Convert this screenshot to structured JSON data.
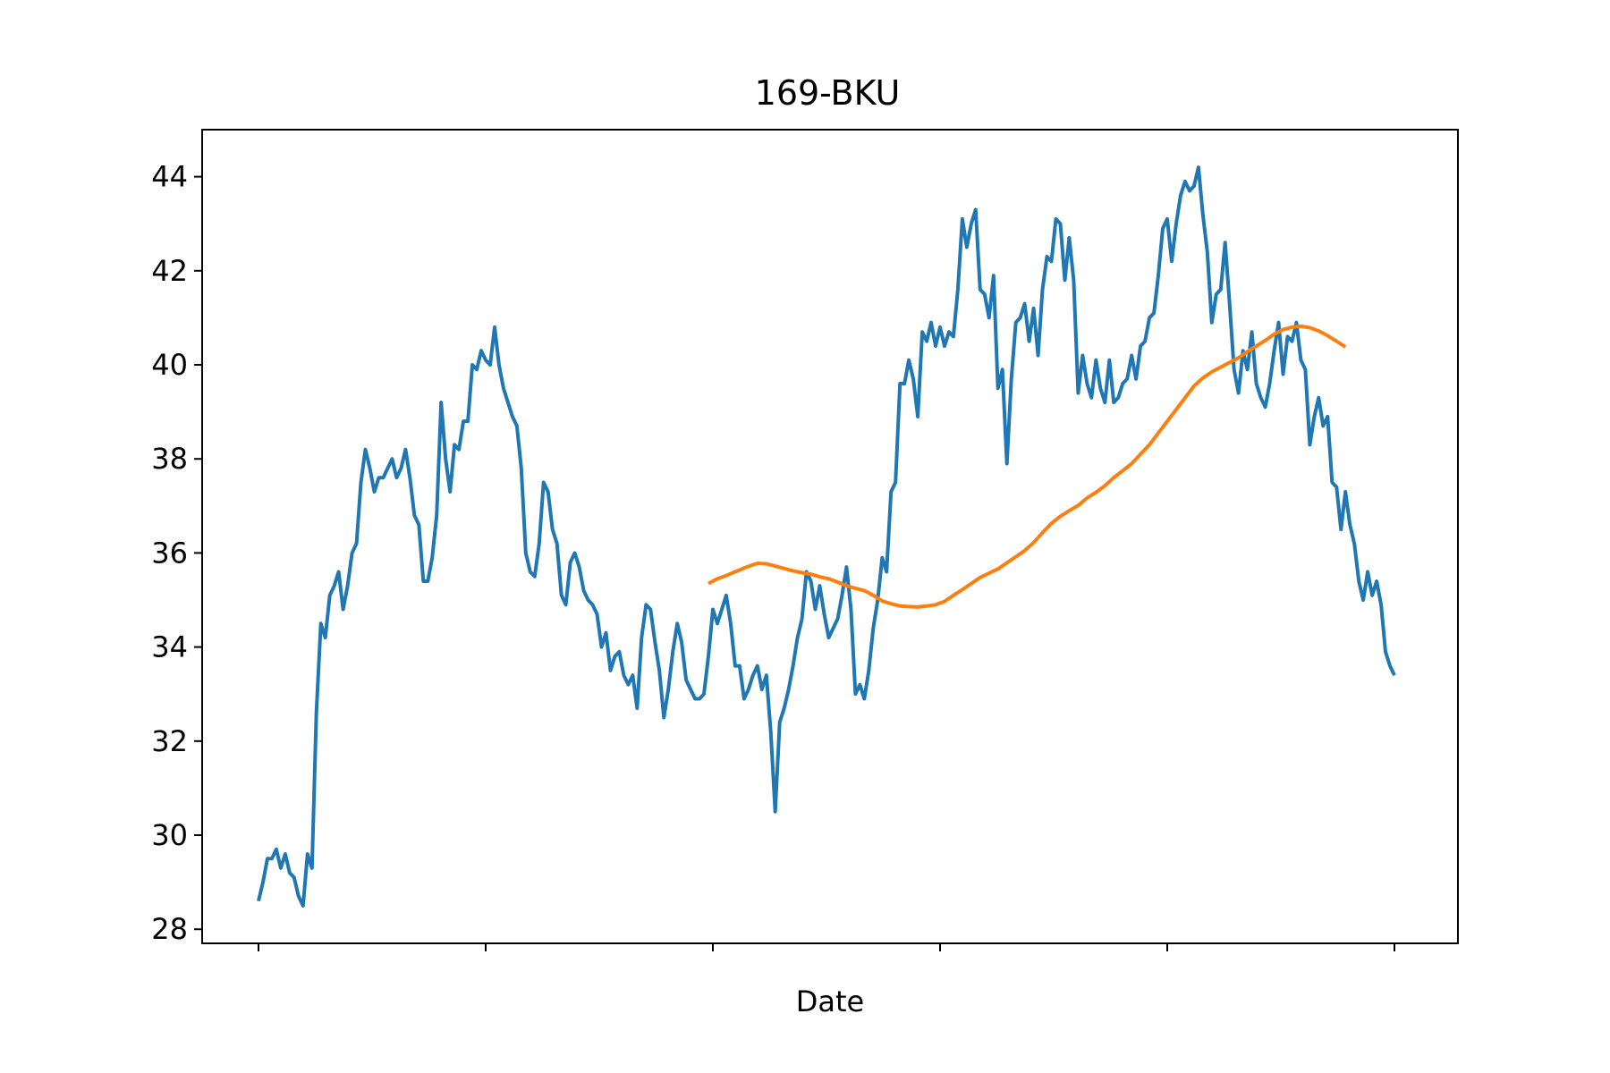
{
  "chart_data": {
    "type": "line",
    "title": "169-BKU",
    "xlabel": "Date",
    "ylabel": "",
    "ylim": [
      27.7,
      45.0
    ],
    "yticks": [
      28,
      30,
      32,
      34,
      36,
      38,
      40,
      42,
      44
    ],
    "x_tick_count": 6,
    "grid": false,
    "legend": "none",
    "colors": {
      "price": "#1f77b4",
      "moving_average": "#ff7f0e",
      "axes": "#000000"
    },
    "series": [
      {
        "key": "price",
        "points": [
          [
            0,
            28.6
          ],
          [
            1,
            29.0
          ],
          [
            2,
            29.5
          ],
          [
            3,
            29.5
          ],
          [
            4,
            29.7
          ],
          [
            5,
            29.3
          ],
          [
            6,
            29.6
          ],
          [
            7,
            29.2
          ],
          [
            8,
            29.1
          ],
          [
            9,
            28.7
          ],
          [
            10,
            28.5
          ],
          [
            11,
            29.6
          ],
          [
            12,
            29.3
          ],
          [
            13,
            32.6
          ],
          [
            14,
            34.5
          ],
          [
            15,
            34.2
          ],
          [
            16,
            35.1
          ],
          [
            17,
            35.3
          ],
          [
            18,
            35.6
          ],
          [
            19,
            34.8
          ],
          [
            20,
            35.3
          ],
          [
            21,
            36.0
          ],
          [
            22,
            36.2
          ],
          [
            23,
            37.5
          ],
          [
            24,
            38.2
          ],
          [
            25,
            37.8
          ],
          [
            26,
            37.3
          ],
          [
            27,
            37.6
          ],
          [
            28,
            37.6
          ],
          [
            29,
            37.8
          ],
          [
            30,
            38.0
          ],
          [
            31,
            37.6
          ],
          [
            32,
            37.8
          ],
          [
            33,
            38.2
          ],
          [
            34,
            37.6
          ],
          [
            35,
            36.8
          ],
          [
            36,
            36.6
          ],
          [
            37,
            35.4
          ],
          [
            38,
            35.4
          ],
          [
            39,
            35.9
          ],
          [
            40,
            36.8
          ],
          [
            41,
            39.2
          ],
          [
            42,
            38.0
          ],
          [
            43,
            37.3
          ],
          [
            44,
            38.3
          ],
          [
            45,
            38.2
          ],
          [
            46,
            38.8
          ],
          [
            47,
            38.8
          ],
          [
            48,
            40.0
          ],
          [
            49,
            39.9
          ],
          [
            50,
            40.3
          ],
          [
            51,
            40.1
          ],
          [
            52,
            40.0
          ],
          [
            53,
            40.8
          ],
          [
            54,
            40.0
          ],
          [
            55,
            39.5
          ],
          [
            56,
            39.2
          ],
          [
            57,
            38.9
          ],
          [
            58,
            38.7
          ],
          [
            59,
            37.8
          ],
          [
            60,
            36.0
          ],
          [
            61,
            35.6
          ],
          [
            62,
            35.5
          ],
          [
            63,
            36.2
          ],
          [
            64,
            37.5
          ],
          [
            65,
            37.3
          ],
          [
            66,
            36.5
          ],
          [
            67,
            36.2
          ],
          [
            68,
            35.1
          ],
          [
            69,
            34.9
          ],
          [
            70,
            35.8
          ],
          [
            71,
            36.0
          ],
          [
            72,
            35.7
          ],
          [
            73,
            35.2
          ],
          [
            74,
            35.0
          ],
          [
            75,
            34.9
          ],
          [
            76,
            34.7
          ],
          [
            77,
            34.0
          ],
          [
            78,
            34.3
          ],
          [
            79,
            33.5
          ],
          [
            80,
            33.8
          ],
          [
            81,
            33.9
          ],
          [
            82,
            33.4
          ],
          [
            83,
            33.2
          ],
          [
            84,
            33.4
          ],
          [
            85,
            32.7
          ],
          [
            86,
            34.2
          ],
          [
            87,
            34.9
          ],
          [
            88,
            34.8
          ],
          [
            89,
            34.1
          ],
          [
            90,
            33.5
          ],
          [
            91,
            32.5
          ],
          [
            92,
            33.1
          ],
          [
            93,
            33.9
          ],
          [
            94,
            34.5
          ],
          [
            95,
            34.1
          ],
          [
            96,
            33.3
          ],
          [
            97,
            33.1
          ],
          [
            98,
            32.9
          ],
          [
            99,
            32.9
          ],
          [
            100,
            33.0
          ],
          [
            101,
            33.8
          ],
          [
            102,
            34.8
          ],
          [
            103,
            34.5
          ],
          [
            104,
            34.8
          ],
          [
            105,
            35.1
          ],
          [
            106,
            34.5
          ],
          [
            107,
            33.6
          ],
          [
            108,
            33.6
          ],
          [
            109,
            32.9
          ],
          [
            110,
            33.1
          ],
          [
            111,
            33.4
          ],
          [
            112,
            33.6
          ],
          [
            113,
            33.1
          ],
          [
            114,
            33.4
          ],
          [
            115,
            32.2
          ],
          [
            116,
            30.5
          ],
          [
            117,
            32.4
          ],
          [
            118,
            32.7
          ],
          [
            119,
            33.1
          ],
          [
            120,
            33.6
          ],
          [
            121,
            34.2
          ],
          [
            122,
            34.6
          ],
          [
            123,
            35.6
          ],
          [
            124,
            35.4
          ],
          [
            125,
            34.8
          ],
          [
            126,
            35.3
          ],
          [
            127,
            34.7
          ],
          [
            128,
            34.2
          ],
          [
            129,
            34.4
          ],
          [
            130,
            34.6
          ],
          [
            131,
            35.1
          ],
          [
            132,
            35.7
          ],
          [
            133,
            34.8
          ],
          [
            134,
            33.0
          ],
          [
            135,
            33.2
          ],
          [
            136,
            32.9
          ],
          [
            137,
            33.5
          ],
          [
            138,
            34.4
          ],
          [
            139,
            35.0
          ],
          [
            140,
            35.9
          ],
          [
            141,
            35.6
          ],
          [
            142,
            37.3
          ],
          [
            143,
            37.5
          ],
          [
            144,
            39.6
          ],
          [
            145,
            39.6
          ],
          [
            146,
            40.1
          ],
          [
            147,
            39.7
          ],
          [
            148,
            38.9
          ],
          [
            149,
            40.7
          ],
          [
            150,
            40.5
          ],
          [
            151,
            40.9
          ],
          [
            152,
            40.4
          ],
          [
            153,
            40.8
          ],
          [
            154,
            40.4
          ],
          [
            155,
            40.7
          ],
          [
            156,
            40.6
          ],
          [
            157,
            41.6
          ],
          [
            158,
            43.1
          ],
          [
            159,
            42.5
          ],
          [
            160,
            43.0
          ],
          [
            161,
            43.3
          ],
          [
            162,
            41.6
          ],
          [
            163,
            41.5
          ],
          [
            164,
            41.0
          ],
          [
            165,
            41.9
          ],
          [
            166,
            39.5
          ],
          [
            167,
            39.9
          ],
          [
            168,
            37.9
          ],
          [
            169,
            39.7
          ],
          [
            170,
            40.9
          ],
          [
            171,
            41.0
          ],
          [
            172,
            41.3
          ],
          [
            173,
            40.5
          ],
          [
            174,
            41.2
          ],
          [
            175,
            40.2
          ],
          [
            176,
            41.6
          ],
          [
            177,
            42.3
          ],
          [
            178,
            42.2
          ],
          [
            179,
            43.1
          ],
          [
            180,
            43.0
          ],
          [
            181,
            41.8
          ],
          [
            182,
            42.7
          ],
          [
            183,
            41.8
          ],
          [
            184,
            39.4
          ],
          [
            185,
            40.2
          ],
          [
            186,
            39.6
          ],
          [
            187,
            39.3
          ],
          [
            188,
            40.1
          ],
          [
            189,
            39.5
          ],
          [
            190,
            39.2
          ],
          [
            191,
            40.1
          ],
          [
            192,
            39.2
          ],
          [
            193,
            39.3
          ],
          [
            194,
            39.6
          ],
          [
            195,
            39.7
          ],
          [
            196,
            40.2
          ],
          [
            197,
            39.7
          ],
          [
            198,
            40.4
          ],
          [
            199,
            40.5
          ],
          [
            200,
            41.0
          ],
          [
            201,
            41.1
          ],
          [
            202,
            41.9
          ],
          [
            203,
            42.9
          ],
          [
            204,
            43.1
          ],
          [
            205,
            42.2
          ],
          [
            206,
            43.0
          ],
          [
            207,
            43.6
          ],
          [
            208,
            43.9
          ],
          [
            209,
            43.7
          ],
          [
            210,
            43.8
          ],
          [
            211,
            44.2
          ],
          [
            212,
            43.2
          ],
          [
            213,
            42.4
          ],
          [
            214,
            40.9
          ],
          [
            215,
            41.5
          ],
          [
            216,
            41.6
          ],
          [
            217,
            42.6
          ],
          [
            218,
            41.3
          ],
          [
            219,
            39.9
          ],
          [
            220,
            39.4
          ],
          [
            221,
            40.3
          ],
          [
            222,
            39.9
          ],
          [
            223,
            40.7
          ],
          [
            224,
            39.6
          ],
          [
            225,
            39.3
          ],
          [
            226,
            39.1
          ],
          [
            227,
            39.6
          ],
          [
            228,
            40.3
          ],
          [
            229,
            40.9
          ],
          [
            230,
            39.8
          ],
          [
            231,
            40.6
          ],
          [
            232,
            40.5
          ],
          [
            233,
            40.9
          ],
          [
            234,
            40.1
          ],
          [
            235,
            39.9
          ],
          [
            236,
            38.3
          ],
          [
            237,
            38.9
          ],
          [
            238,
            39.3
          ],
          [
            239,
            38.7
          ],
          [
            240,
            38.9
          ],
          [
            241,
            37.5
          ],
          [
            242,
            37.4
          ],
          [
            243,
            36.5
          ],
          [
            244,
            37.3
          ],
          [
            245,
            36.6
          ],
          [
            246,
            36.2
          ],
          [
            247,
            35.4
          ],
          [
            248,
            35.0
          ],
          [
            249,
            35.6
          ],
          [
            250,
            35.1
          ],
          [
            251,
            35.4
          ],
          [
            252,
            34.9
          ],
          [
            253,
            33.9
          ],
          [
            254,
            33.6
          ],
          [
            255,
            33.4
          ]
        ]
      },
      {
        "key": "moving_average",
        "points": [
          [
            101,
            35.35
          ],
          [
            103,
            35.45
          ],
          [
            105,
            35.52
          ],
          [
            107,
            35.6
          ],
          [
            109,
            35.68
          ],
          [
            111,
            35.75
          ],
          [
            112,
            35.78
          ],
          [
            114,
            35.77
          ],
          [
            116,
            35.72
          ],
          [
            118,
            35.67
          ],
          [
            120,
            35.62
          ],
          [
            122,
            35.58
          ],
          [
            124,
            35.55
          ],
          [
            126,
            35.49
          ],
          [
            128,
            35.45
          ],
          [
            130,
            35.38
          ],
          [
            132,
            35.3
          ],
          [
            134,
            35.25
          ],
          [
            136,
            35.2
          ],
          [
            138,
            35.1
          ],
          [
            140,
            34.98
          ],
          [
            142,
            34.92
          ],
          [
            144,
            34.87
          ],
          [
            146,
            34.86
          ],
          [
            148,
            34.85
          ],
          [
            150,
            34.87
          ],
          [
            152,
            34.9
          ],
          [
            154,
            34.97
          ],
          [
            156,
            35.1
          ],
          [
            158,
            35.22
          ],
          [
            160,
            35.35
          ],
          [
            162,
            35.48
          ],
          [
            164,
            35.57
          ],
          [
            166,
            35.66
          ],
          [
            168,
            35.79
          ],
          [
            170,
            35.92
          ],
          [
            172,
            36.05
          ],
          [
            174,
            36.22
          ],
          [
            176,
            36.43
          ],
          [
            178,
            36.63
          ],
          [
            180,
            36.78
          ],
          [
            182,
            36.9
          ],
          [
            184,
            37.01
          ],
          [
            186,
            37.17
          ],
          [
            188,
            37.29
          ],
          [
            190,
            37.43
          ],
          [
            192,
            37.6
          ],
          [
            194,
            37.75
          ],
          [
            196,
            37.9
          ],
          [
            198,
            38.1
          ],
          [
            200,
            38.3
          ],
          [
            202,
            38.55
          ],
          [
            204,
            38.8
          ],
          [
            206,
            39.05
          ],
          [
            208,
            39.3
          ],
          [
            210,
            39.55
          ],
          [
            212,
            39.72
          ],
          [
            214,
            39.85
          ],
          [
            216,
            39.95
          ],
          [
            218,
            40.05
          ],
          [
            220,
            40.15
          ],
          [
            222,
            40.28
          ],
          [
            224,
            40.4
          ],
          [
            226,
            40.52
          ],
          [
            228,
            40.65
          ],
          [
            230,
            40.75
          ],
          [
            232,
            40.8
          ],
          [
            234,
            40.82
          ],
          [
            236,
            40.79
          ],
          [
            238,
            40.72
          ],
          [
            240,
            40.62
          ],
          [
            242,
            40.5
          ],
          [
            244,
            40.38
          ]
        ]
      }
    ]
  }
}
